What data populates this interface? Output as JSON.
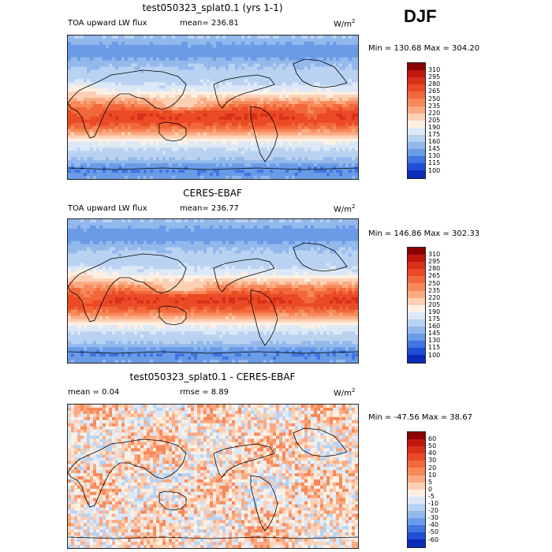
{
  "season": "DJF",
  "panels": [
    {
      "title": "test050323_splat0.1 (yrs 1-1)",
      "left_label": "TOA upward LW flux",
      "mean_label": "mean= 236.81",
      "units": "W/m",
      "units_sup": "2",
      "minmax": "Min = 130.68 Max = 304.20",
      "colorbar_labels": [
        "310",
        "295",
        "280",
        "265",
        "250",
        "235",
        "220",
        "205",
        "190",
        "175",
        "160",
        "145",
        "130",
        "115",
        "100"
      ],
      "colorbar_colors": [
        "#8b0000",
        "#c1160c",
        "#d9301a",
        "#ea4a25",
        "#f2683a",
        "#f7895a",
        "#fbaa82",
        "#fdd0b4",
        "#fdf0e3",
        "#dde8f7",
        "#b9d2f1",
        "#93b8ec",
        "#6a9be6",
        "#3f76e0",
        "#1f4fd6",
        "#0a2bb8"
      ],
      "map_type": "abs"
    },
    {
      "title": "CERES-EBAF",
      "left_label": "TOA upward LW flux",
      "mean_label": "mean= 236.77",
      "units": "W/m",
      "units_sup": "2",
      "minmax": "Min = 146.86 Max = 302.33",
      "colorbar_labels": [
        "310",
        "295",
        "280",
        "265",
        "250",
        "235",
        "220",
        "205",
        "190",
        "175",
        "160",
        "145",
        "130",
        "115",
        "100"
      ],
      "colorbar_colors": [
        "#8b0000",
        "#c1160c",
        "#d9301a",
        "#ea4a25",
        "#f2683a",
        "#f7895a",
        "#fbaa82",
        "#fdd0b4",
        "#fdf0e3",
        "#dde8f7",
        "#b9d2f1",
        "#93b8ec",
        "#6a9be6",
        "#3f76e0",
        "#1f4fd6",
        "#0a2bb8"
      ],
      "map_type": "abs"
    },
    {
      "title": "test050323_splat0.1 - CERES-EBAF",
      "left_label": "mean =    0.04",
      "mean_label": "rmse =    8.89",
      "units": "W/m",
      "units_sup": "2",
      "minmax": "Min = -47.56 Max =  38.67",
      "colorbar_labels": [
        "60",
        "50",
        "40",
        "30",
        "20",
        "10",
        "5",
        "0",
        "-5",
        "-10",
        "-20",
        "-30",
        "-40",
        "-50",
        "-60"
      ],
      "colorbar_colors": [
        "#8b0000",
        "#c1160c",
        "#d9301a",
        "#ea4a25",
        "#f2683a",
        "#f7895a",
        "#fbaa82",
        "#fdd0b4",
        "#fdf0e3",
        "#dde8f7",
        "#b9d2f1",
        "#93b8ec",
        "#6a9be6",
        "#3f76e0",
        "#1f4fd6",
        "#0a2bb8"
      ],
      "map_type": "diff"
    }
  ]
}
